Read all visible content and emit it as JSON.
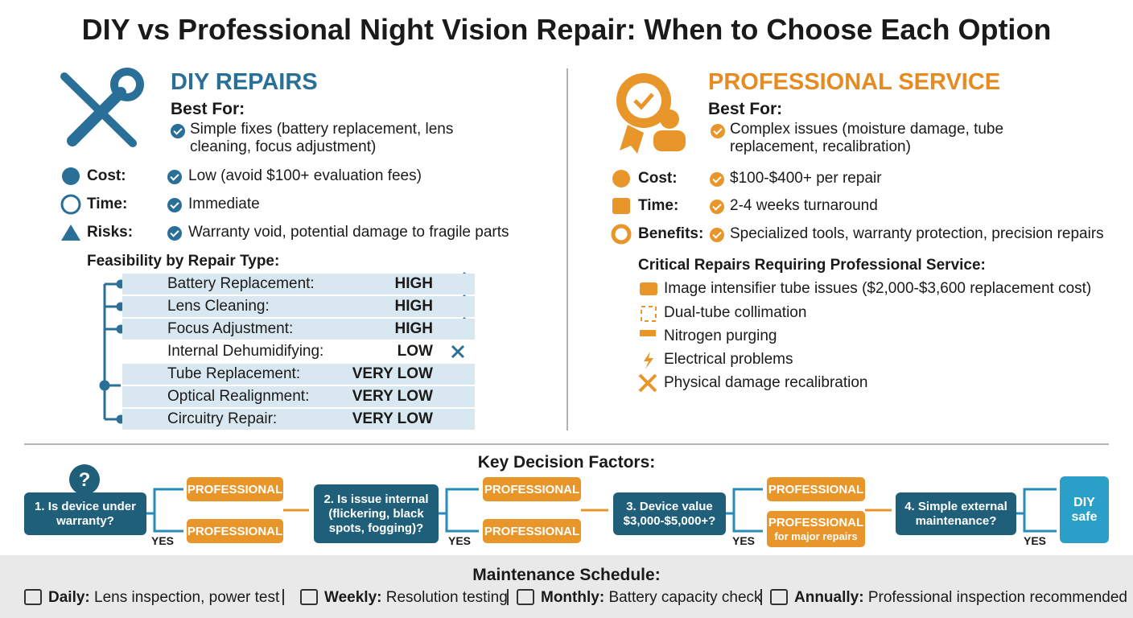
{
  "title": "DIY vs Professional Night Vision Repair: When to Choose Each Option",
  "diy": {
    "heading": "DIY REPAIRS",
    "best_for_label": "Best For:",
    "best_for": "Simple fixes (battery replacement, lens cleaning, focus adjustment)",
    "rows": [
      {
        "label": "Cost:",
        "text": "Low (avoid $100+ evaluation fees)"
      },
      {
        "label": "Time:",
        "text": "Immediate"
      },
      {
        "label": "Risks:",
        "text": "Warranty void, potential damage to fragile parts"
      }
    ],
    "feasibility_title": "Feasibility by Repair Type:",
    "feasibility": [
      {
        "repair": "Battery Replacement:",
        "level": "HIGH"
      },
      {
        "repair": "Lens Cleaning:",
        "level": "HIGH"
      },
      {
        "repair": "Focus Adjustment:",
        "level": "HIGH"
      },
      {
        "repair": "Internal Dehumidifying:",
        "level": "LOW"
      },
      {
        "repair": "Tube Replacement:",
        "level": "VERY LOW"
      },
      {
        "repair": "Optical Realignment:",
        "level": "VERY LOW"
      },
      {
        "repair": "Circuitry Repair:",
        "level": "VERY LOW"
      }
    ]
  },
  "pro": {
    "heading": "PROFESSIONAL SERVICE",
    "best_for_label": "Best For:",
    "best_for": "Complex issues (moisture damage, tube replacement, recalibration)",
    "rows": [
      {
        "label": "Cost:",
        "text": "$100-$400+ per repair"
      },
      {
        "label": "Time:",
        "text": "2-4 weeks turnaround"
      },
      {
        "label": "Benefits:",
        "text": "Specialized tools, warranty protection, precision repairs"
      }
    ],
    "critical_title": "Critical Repairs Requiring Professional Service:",
    "critical": [
      "Image intensifier tube issues ($2,000-$3,600 replacement cost)",
      "Dual-tube collimation",
      "Nitrogen purging",
      "Electrical problems",
      "Physical damage recalibration"
    ]
  },
  "decision": {
    "title": "Key Decision Factors:",
    "steps": [
      {
        "question": "1. Is device under warranty?",
        "top": "PROFESSIONAL",
        "bottom": "PROFESSIONAL",
        "yes": "YES"
      },
      {
        "question": "2. Is issue internal (flickering, black spots, fogging)?",
        "top": "PROFESSIONAL",
        "bottom": "PROFESSIONAL",
        "yes": "YES"
      },
      {
        "question": "3. Device value $3,000-$5,000+?",
        "top": "PROFESSIONAL",
        "bottom": "PROFESSIONAL",
        "bottom_note": "for major repairs",
        "yes": "YES"
      },
      {
        "question": "4. Simple external maintenance?",
        "yes": "YES"
      }
    ],
    "final": "DIY safe"
  },
  "maintenance": {
    "title": "Maintenance Schedule:",
    "items": [
      {
        "label": "Daily:",
        "text": "Lens inspection, power test"
      },
      {
        "label": "Weekly:",
        "text": "Resolution testing"
      },
      {
        "label": "Monthly:",
        "text": "Battery capacity check"
      },
      {
        "label": "Annually:",
        "text": "Professional inspection recommended"
      }
    ]
  }
}
